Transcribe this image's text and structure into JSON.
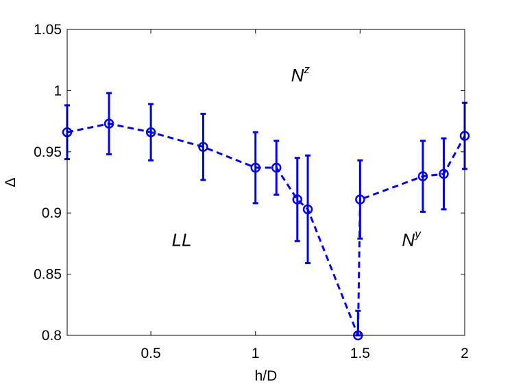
{
  "chart_data": {
    "type": "line",
    "xlabel": "h/D",
    "ylabel": "Δ",
    "xlim": [
      0.1,
      2.0
    ],
    "ylim": [
      0.8,
      1.05
    ],
    "x_ticks": [
      0.5,
      1,
      1.5,
      2
    ],
    "x_tick_labels": [
      "0.5",
      "1",
      "1.5",
      "2"
    ],
    "y_ticks": [
      0.8,
      0.85,
      0.9,
      0.95,
      1.0,
      1.05
    ],
    "y_tick_labels": [
      "0.8",
      "0.85",
      "0.9",
      "0.95",
      "1",
      "1.05"
    ],
    "grid": false,
    "line_color": "#0000ee",
    "line_style": "dashed",
    "marker": "circle",
    "series": [
      {
        "x": [
          0.1,
          0.3,
          0.5,
          0.75,
          1.0,
          1.1,
          1.2,
          1.25,
          1.49,
          1.5,
          1.8,
          1.9,
          2.0
        ],
        "y": [
          0.966,
          0.973,
          0.966,
          0.954,
          0.937,
          0.937,
          0.911,
          0.903,
          0.8,
          0.911,
          0.93,
          0.932,
          0.963
        ],
        "yerr": [
          0.022,
          0.025,
          0.023,
          0.027,
          0.029,
          0.022,
          0.034,
          0.044,
          0.02,
          0.032,
          0.029,
          0.029,
          0.027
        ]
      }
    ],
    "annotations": [
      {
        "base": "N",
        "sup": "z",
        "x": 1.17,
        "y": 1.0075
      },
      {
        "base": "LL",
        "sup": "",
        "x": 0.6,
        "y": 0.873
      },
      {
        "base": "N",
        "sup": "y",
        "x": 1.7,
        "y": 0.873
      }
    ]
  }
}
